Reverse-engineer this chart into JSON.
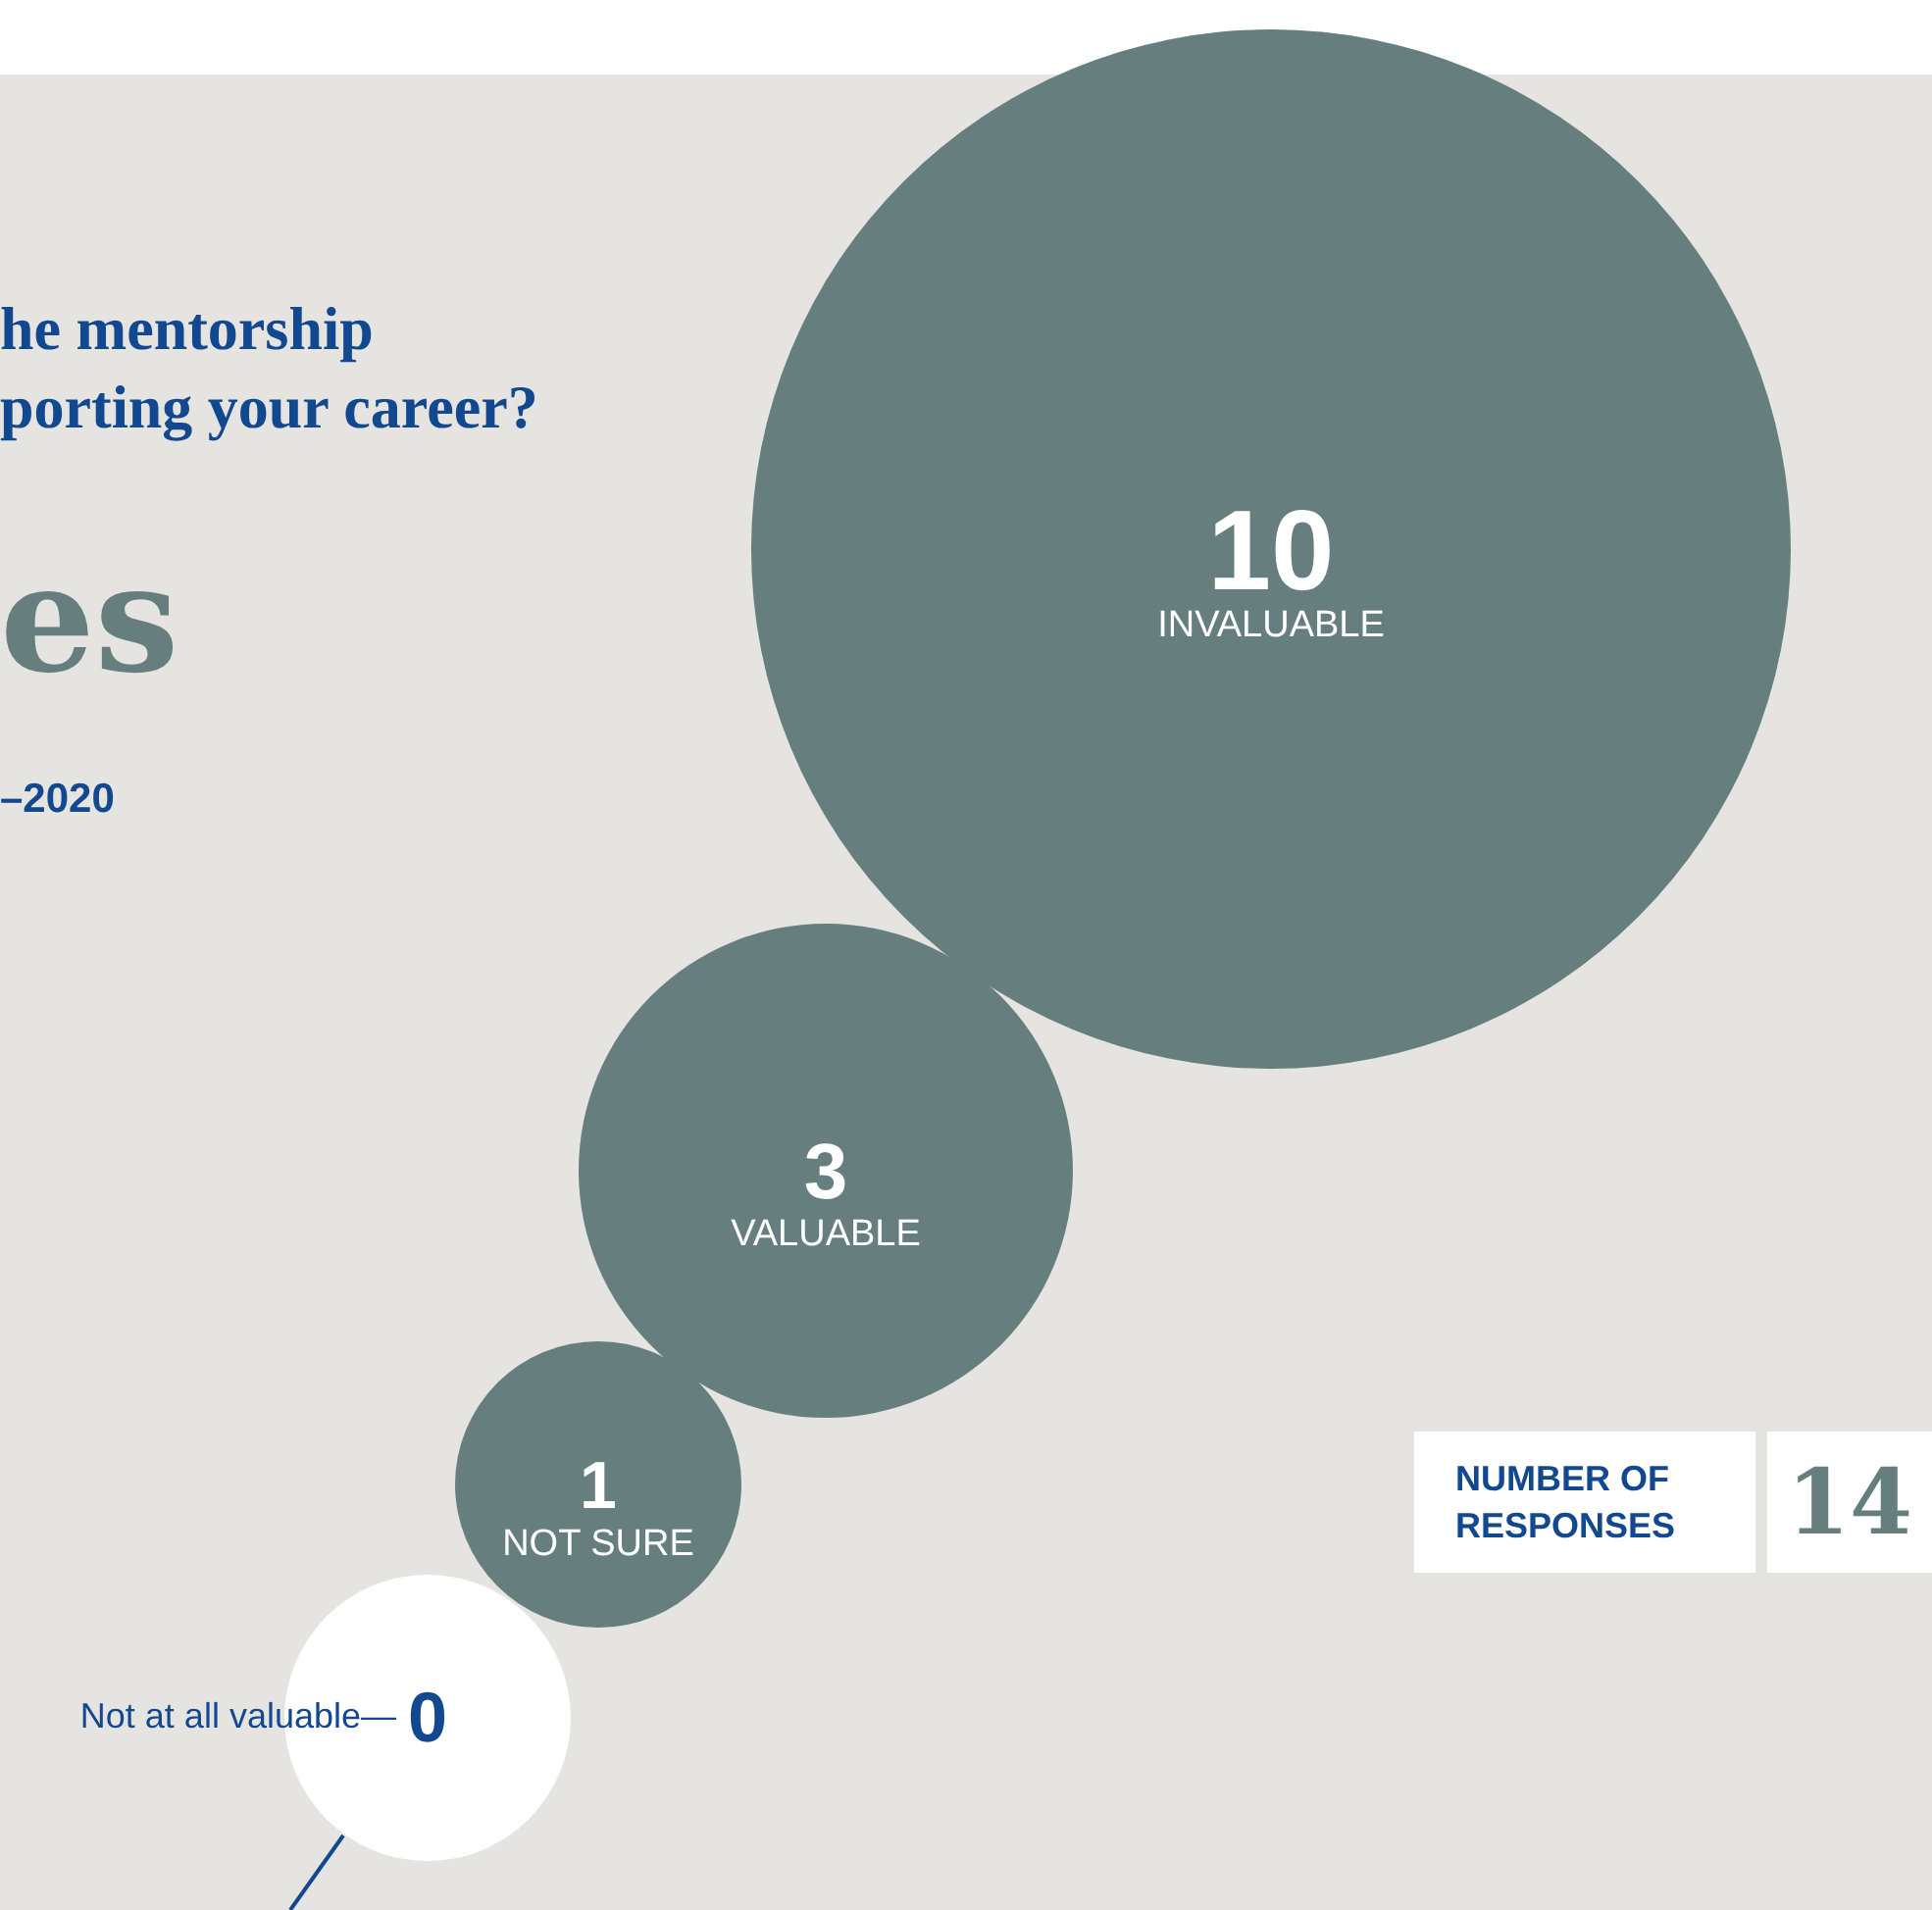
{
  "chart_data": {
    "type": "other",
    "title": "he mentorship\nporting your career?",
    "subtitle": "es",
    "categories": [
      "INVALUABLE",
      "VALUABLE",
      "NOT SURE",
      "Not at all valuable—"
    ],
    "values": [
      10,
      3,
      1,
      0
    ],
    "colors": [
      "#667e7e",
      "#667e7e",
      "#667e7e",
      "#ffffff"
    ],
    "data_labels": true,
    "annotations": [
      "–2020",
      "NUMBER OF RESPONSES",
      "14"
    ]
  }
}
